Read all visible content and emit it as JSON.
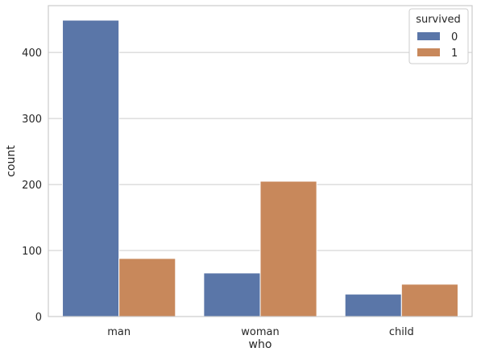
{
  "chart_data": {
    "type": "bar",
    "categories": [
      "man",
      "woman",
      "child"
    ],
    "series": [
      {
        "name": "0",
        "values": [
          449,
          66,
          34
        ]
      },
      {
        "name": "1",
        "values": [
          88,
          205,
          49
        ]
      }
    ],
    "xlabel": "who",
    "ylabel": "count",
    "ylim": [
      0,
      471
    ],
    "yticks": [
      0,
      100,
      200,
      300,
      400
    ],
    "grid": true,
    "legend": {
      "title": "survived",
      "position": "top-right"
    },
    "colors": [
      "#5a76a8",
      "#c8885b"
    ]
  }
}
